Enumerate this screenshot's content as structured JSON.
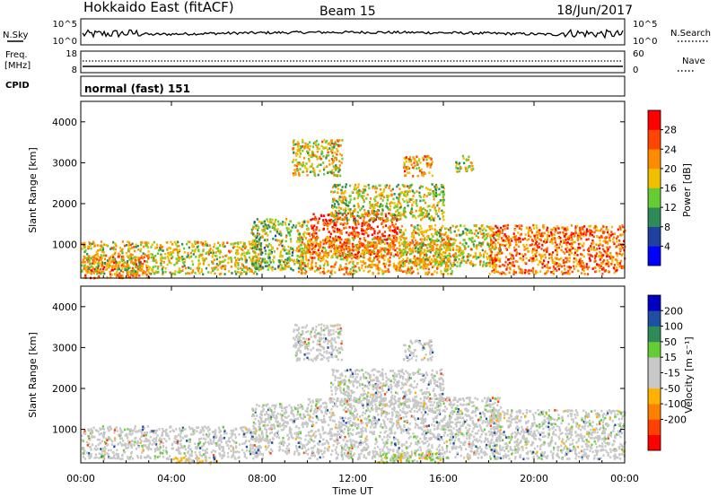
{
  "header": {
    "station": "Hokkaido East (fitACF)",
    "beam": "Beam 15",
    "date": "18/Jun/2017"
  },
  "noise_panel": {
    "left_label": "N.Sky",
    "right_label": "N.Search",
    "left_ticks": [
      "10^5",
      "10^0"
    ],
    "right_ticks": [
      "10^5",
      "10^0"
    ]
  },
  "freq_panel": {
    "left_label": "Freq.",
    "left_unit": "[MHz]",
    "left_ticks": [
      "18",
      "8"
    ],
    "right_label": "Nave",
    "right_ticks": [
      "60",
      "0"
    ]
  },
  "cpid": {
    "label": "CPID",
    "value": "normal (fast) 151"
  },
  "chart_data": [
    {
      "type": "heatmap",
      "name": "power",
      "ylabel": "Slant Range [km]",
      "yticks": [
        "4000",
        "3000",
        "2000",
        "1000"
      ],
      "ytick_values": [
        4000,
        3000,
        2000,
        1000
      ],
      "ylim": [
        180,
        4500
      ],
      "xlim": [
        0,
        24
      ],
      "colorbar_label": "Power [dB]",
      "colorbar_ticks": [
        "28",
        "24",
        "20",
        "16",
        "12",
        "8",
        "4"
      ],
      "colorbar_colors": [
        "#0000ff",
        "#2040a0",
        "#2e8b57",
        "#66cc33",
        "#f0c000",
        "#ff8c00",
        "#ff4500",
        "#ff0000"
      ],
      "regions": [
        {
          "x0": 0.1,
          "x1": 3.0,
          "y0": 200,
          "y1": 750,
          "level": 0.75
        },
        {
          "x0": 0.0,
          "x1": 8.0,
          "y0": 300,
          "y1": 1100,
          "level": 0.55
        },
        {
          "x0": 7.5,
          "x1": 10.0,
          "y0": 400,
          "y1": 1650,
          "level": 0.45
        },
        {
          "x0": 10.0,
          "x1": 14.0,
          "y0": 700,
          "y1": 1800,
          "level": 0.85
        },
        {
          "x0": 9.5,
          "x1": 16.5,
          "y0": 300,
          "y1": 1200,
          "level": 0.65
        },
        {
          "x0": 14.0,
          "x1": 18.5,
          "y0": 500,
          "y1": 1500,
          "level": 0.55
        },
        {
          "x0": 18.0,
          "x1": 24.0,
          "y0": 300,
          "y1": 1500,
          "level": 0.75
        },
        {
          "x0": 11.0,
          "x1": 16.0,
          "y0": 1600,
          "y1": 2500,
          "level": 0.5
        },
        {
          "x0": 9.3,
          "x1": 11.5,
          "y0": 2700,
          "y1": 3600,
          "level": 0.55
        },
        {
          "x0": 14.2,
          "x1": 15.5,
          "y0": 2700,
          "y1": 3200,
          "level": 0.7
        },
        {
          "x0": 16.5,
          "x1": 17.3,
          "y0": 2800,
          "y1": 3200,
          "level": 0.5
        }
      ]
    },
    {
      "type": "heatmap",
      "name": "velocity",
      "ylabel": "Slant Range [km]",
      "yticks": [
        "4000",
        "3000",
        "2000",
        "1000"
      ],
      "ytick_values": [
        4000,
        3000,
        2000,
        1000
      ],
      "ylim": [
        180,
        4500
      ],
      "xlim": [
        0,
        24
      ],
      "xticks": [
        "00:00",
        "04:00",
        "08:00",
        "12:00",
        "16:00",
        "20:00",
        "00:00"
      ],
      "xtick_values": [
        0,
        4,
        8,
        12,
        16,
        20,
        24
      ],
      "xlabel": "Time UT",
      "colorbar_label": "Velocity [m s⁻¹]",
      "colorbar_ticks": [
        "200",
        "100",
        "50",
        "15",
        "-15",
        "-50",
        "-100",
        "-200"
      ],
      "colorbar_colors": [
        "#ff0000",
        "#ff4000",
        "#ff8000",
        "#ffb300",
        "#c8c8c8",
        "#c8c8c8",
        "#66cc33",
        "#2e8b57",
        "#1f4fa0",
        "#0000c0"
      ],
      "regions": [
        {
          "x0": 0.0,
          "x1": 8.0,
          "y0": 300,
          "y1": 1100,
          "level": 0.5
        },
        {
          "x0": 7.5,
          "x1": 10.0,
          "y0": 400,
          "y1": 1650,
          "level": 0.5
        },
        {
          "x0": 10.0,
          "x1": 18.5,
          "y0": 300,
          "y1": 1800,
          "level": 0.5
        },
        {
          "x0": 18.0,
          "x1": 24.0,
          "y0": 300,
          "y1": 1500,
          "level": 0.5
        },
        {
          "x0": 11.0,
          "x1": 16.0,
          "y0": 1600,
          "y1": 2500,
          "level": 0.5
        },
        {
          "x0": 9.3,
          "x1": 11.5,
          "y0": 2700,
          "y1": 3600,
          "level": 0.5
        },
        {
          "x0": 14.2,
          "x1": 15.5,
          "y0": 2700,
          "y1": 3200,
          "level": 0.4
        },
        {
          "x0": 13.0,
          "x1": 16.0,
          "y0": 200,
          "y1": 450,
          "level": 0.65
        },
        {
          "x0": 4.0,
          "x1": 6.0,
          "y0": 180,
          "y1": 350,
          "level": 0.35
        }
      ]
    }
  ]
}
